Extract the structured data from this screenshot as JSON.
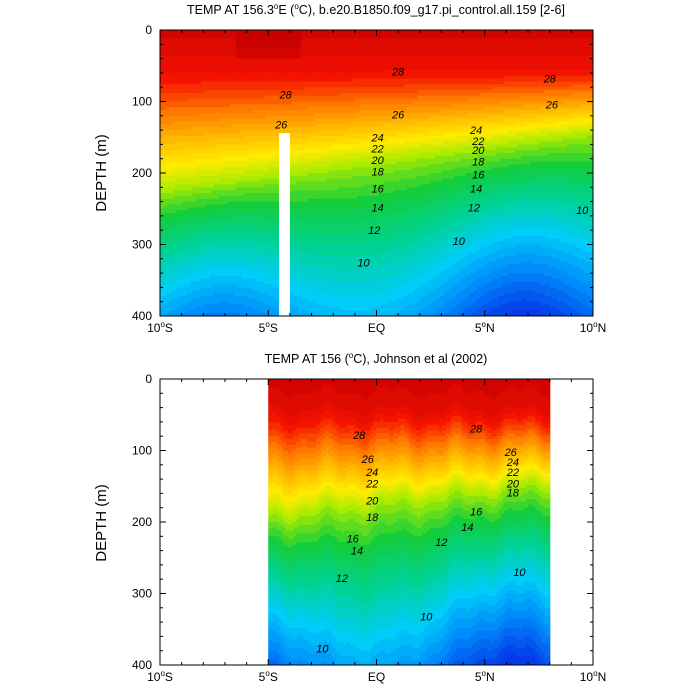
{
  "chart_data": [
    {
      "type": "contour",
      "title": "TEMP AT 156.3°E (°C), b.e20.B1850.f09_g17.pi_control.all.159 [2-6]",
      "title_parts": {
        "prefix": "TEMP AT 156.3",
        "sup1": "o",
        "middle": "E (",
        "sup2": "o",
        "suffix": "C), b.e20.B1850.f09_g17.pi_control.all.159 [2-6]"
      },
      "ylabel": "DEPTH (m)",
      "ylim": [
        400,
        0
      ],
      "y_ticks": [
        {
          "label": "0",
          "v": 0
        },
        {
          "label": "100",
          "v": 100
        },
        {
          "label": "200",
          "v": 200
        },
        {
          "label": "300",
          "v": 300
        },
        {
          "label": "400",
          "v": 400
        }
      ],
      "xlim": [
        -10,
        10
      ],
      "x_ticks": [
        {
          "v": -10,
          "num": "10",
          "deg": "o",
          "hemi": "S"
        },
        {
          "v": -5,
          "num": "5",
          "deg": "o",
          "hemi": "S"
        },
        {
          "v": 0,
          "num": "EQ",
          "deg": "",
          "hemi": ""
        },
        {
          "v": 5,
          "num": "5",
          "deg": "o",
          "hemi": "N"
        },
        {
          "v": 10,
          "num": "10",
          "deg": "o",
          "hemi": "N"
        }
      ],
      "data_x_range": [
        -10,
        10
      ],
      "masked_column": {
        "x_from": -4.5,
        "x_to": -4.0,
        "depth_from": 145,
        "depth_to": 400
      },
      "contour_interval": 1,
      "contour_labels": [
        {
          "text": "28",
          "x": -4.2,
          "y": 90
        },
        {
          "text": "28",
          "x": 1.0,
          "y": 58
        },
        {
          "text": "28",
          "x": 8.0,
          "y": 68
        },
        {
          "text": "26",
          "x": -4.4,
          "y": 132
        },
        {
          "text": "26",
          "x": 1.0,
          "y": 118
        },
        {
          "text": "26",
          "x": 8.1,
          "y": 104
        },
        {
          "text": "24",
          "x": 0.05,
          "y": 150
        },
        {
          "text": "24",
          "x": 4.6,
          "y": 140
        },
        {
          "text": "22",
          "x": 0.05,
          "y": 166
        },
        {
          "text": "22",
          "x": 4.7,
          "y": 155
        },
        {
          "text": "20",
          "x": 0.05,
          "y": 182
        },
        {
          "text": "20",
          "x": 4.7,
          "y": 168
        },
        {
          "text": "18",
          "x": 0.05,
          "y": 198
        },
        {
          "text": "18",
          "x": 4.7,
          "y": 184
        },
        {
          "text": "16",
          "x": 0.05,
          "y": 222
        },
        {
          "text": "16",
          "x": 4.7,
          "y": 202
        },
        {
          "text": "14",
          "x": 0.05,
          "y": 248
        },
        {
          "text": "14",
          "x": 4.6,
          "y": 222
        },
        {
          "text": "12",
          "x": -0.1,
          "y": 280
        },
        {
          "text": "12",
          "x": 4.5,
          "y": 248
        },
        {
          "text": "10",
          "x": -0.6,
          "y": 325
        },
        {
          "text": "10",
          "x": 3.8,
          "y": 295
        },
        {
          "text": "10",
          "x": 9.5,
          "y": 252
        }
      ]
    },
    {
      "type": "contour",
      "title": "TEMP AT 156 (°C), Johnson et al (2002)",
      "title_parts": {
        "prefix": "TEMP AT 156 (",
        "sup1": "o",
        "middle": "C), Johnson et al (2002)",
        "sup2": "",
        "suffix": ""
      },
      "ylabel": "DEPTH (m)",
      "ylim": [
        400,
        0
      ],
      "y_ticks": [
        {
          "label": "0",
          "v": 0
        },
        {
          "label": "100",
          "v": 100
        },
        {
          "label": "200",
          "v": 200
        },
        {
          "label": "300",
          "v": 300
        },
        {
          "label": "400",
          "v": 400
        }
      ],
      "xlim": [
        -10,
        10
      ],
      "x_ticks": [
        {
          "v": -10,
          "num": "10",
          "deg": "o",
          "hemi": "S"
        },
        {
          "v": -5,
          "num": "5",
          "deg": "o",
          "hemi": "S"
        },
        {
          "v": 0,
          "num": "EQ",
          "deg": "",
          "hemi": ""
        },
        {
          "v": 5,
          "num": "5",
          "deg": "o",
          "hemi": "N"
        },
        {
          "v": 10,
          "num": "10",
          "deg": "o",
          "hemi": "N"
        }
      ],
      "data_x_range": [
        -5,
        8
      ],
      "contour_interval": 1,
      "contour_labels": [
        {
          "text": "28",
          "x": -0.8,
          "y": 78
        },
        {
          "text": "28",
          "x": 4.6,
          "y": 69
        },
        {
          "text": "26",
          "x": -0.4,
          "y": 112
        },
        {
          "text": "26",
          "x": 6.2,
          "y": 102
        },
        {
          "text": "24",
          "x": -0.2,
          "y": 130
        },
        {
          "text": "24",
          "x": 6.3,
          "y": 116
        },
        {
          "text": "22",
          "x": -0.2,
          "y": 146
        },
        {
          "text": "22",
          "x": 6.3,
          "y": 130
        },
        {
          "text": "20",
          "x": -0.2,
          "y": 170
        },
        {
          "text": "20",
          "x": 6.3,
          "y": 146
        },
        {
          "text": "18",
          "x": -0.2,
          "y": 193
        },
        {
          "text": "18",
          "x": 6.3,
          "y": 159
        },
        {
          "text": "16",
          "x": -1.1,
          "y": 223
        },
        {
          "text": "16",
          "x": 4.6,
          "y": 185
        },
        {
          "text": "14",
          "x": -0.9,
          "y": 240
        },
        {
          "text": "14",
          "x": 4.2,
          "y": 207
        },
        {
          "text": "12",
          "x": -1.6,
          "y": 278
        },
        {
          "text": "12",
          "x": 3.0,
          "y": 228
        },
        {
          "text": "10",
          "x": 2.3,
          "y": 332
        },
        {
          "text": "10",
          "x": 6.6,
          "y": 270
        },
        {
          "text": "10",
          "x": -2.5,
          "y": 377
        }
      ]
    }
  ]
}
